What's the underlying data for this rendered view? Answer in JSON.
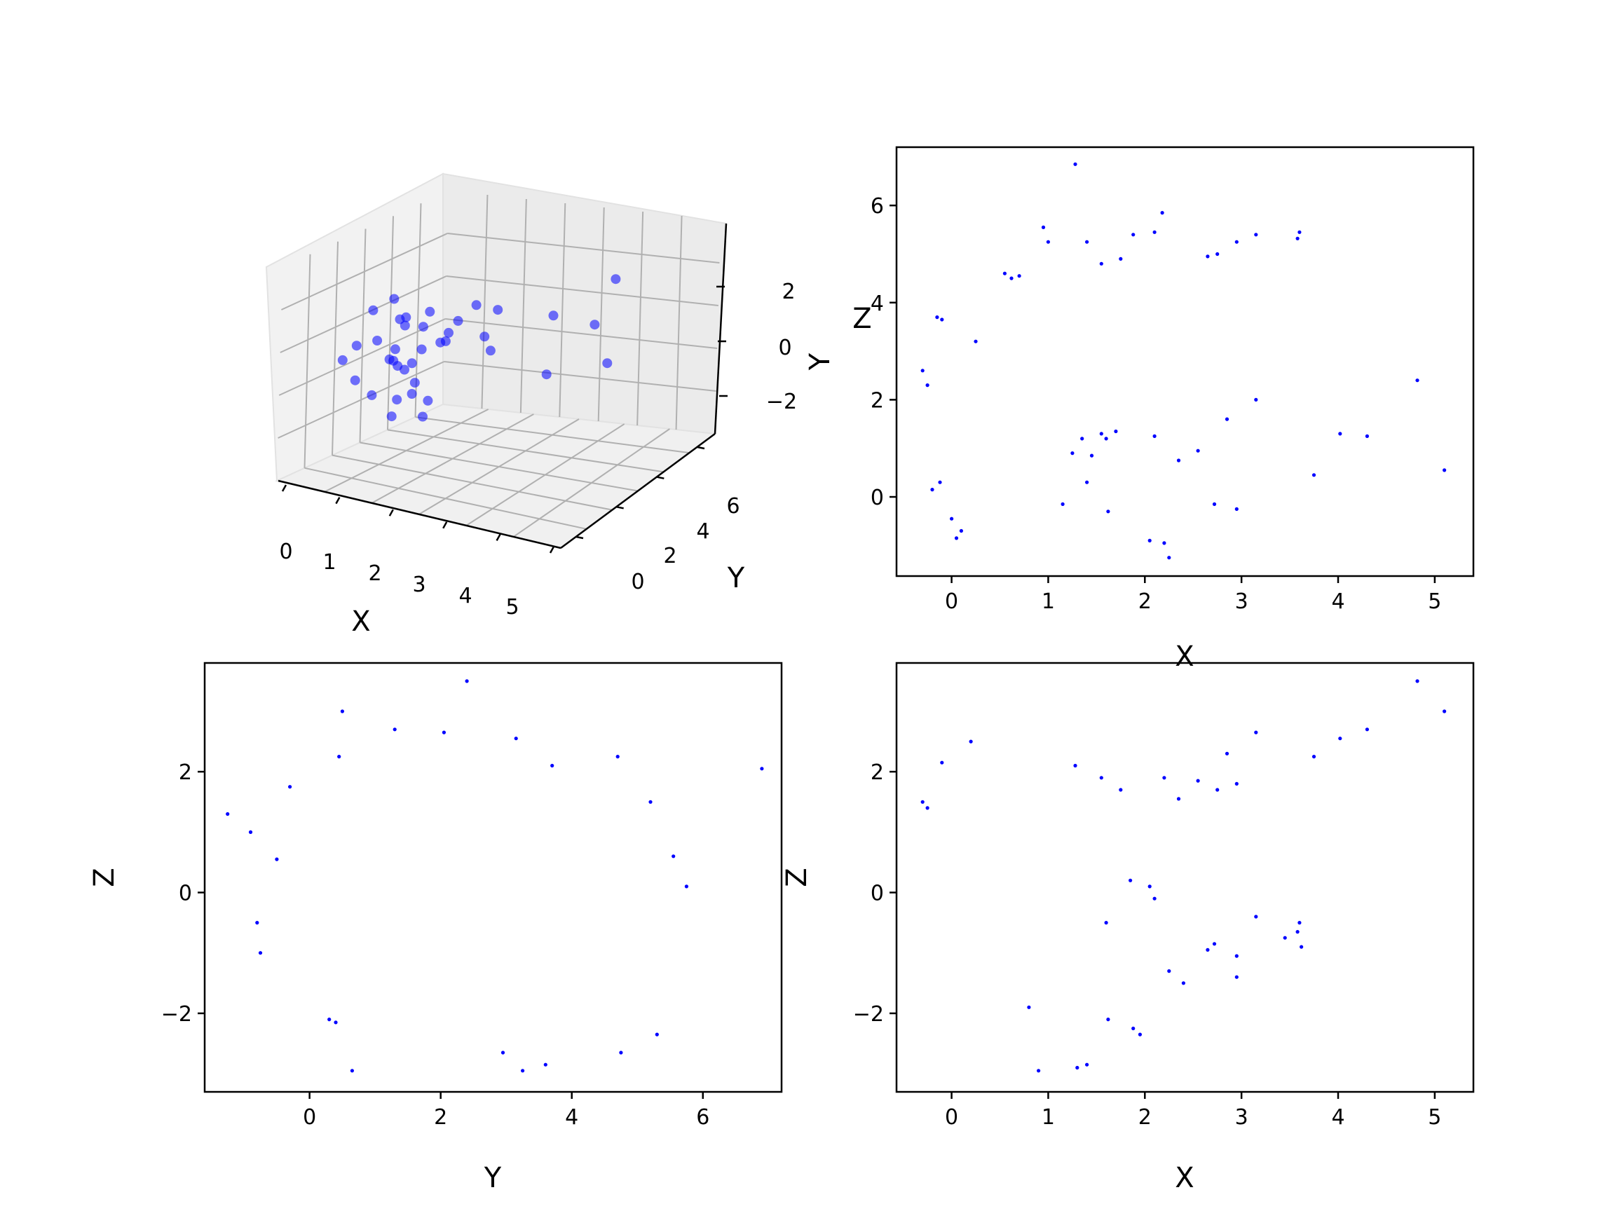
{
  "chart_data": [
    {
      "type": "scatter",
      "subtype": "3d",
      "xlabel": "X",
      "ylabel": "Y",
      "zlabel": "Z",
      "xticks": [
        "0",
        "1",
        "2",
        "3",
        "4",
        "5"
      ],
      "yticks": [
        "0",
        "2",
        "4",
        "6"
      ],
      "zticks": [
        "−2",
        "0",
        "2"
      ],
      "xlim": [
        -0.3,
        5.2
      ],
      "ylim": [
        -1.3,
        6.9
      ],
      "zlim": [
        -3.0,
        3.5
      ],
      "color": "#0000ff",
      "grid": true,
      "points": [
        [
          0.62,
          2.1,
          0.3
        ],
        [
          0.48,
          2.6,
          -0.4
        ],
        [
          0.85,
          2.9,
          0.8
        ],
        [
          0.3,
          1.8,
          -1.1
        ],
        [
          1.0,
          3.4,
          0.2
        ],
        [
          0.7,
          2.4,
          1.2
        ],
        [
          0.2,
          1.2,
          -0.5
        ],
        [
          0.9,
          3.1,
          -1.5
        ],
        [
          0.55,
          2.0,
          0.0
        ],
        [
          1.3,
          3.5,
          0.9
        ],
        [
          0.4,
          1.5,
          1.6
        ],
        [
          0.75,
          2.8,
          -0.9
        ],
        [
          1.1,
          2.2,
          0.4
        ],
        [
          0.35,
          2.7,
          -2.0
        ],
        [
          0.65,
          1.9,
          1.9
        ],
        [
          0.95,
          3.8,
          0.1
        ],
        [
          0.25,
          1.1,
          0.6
        ],
        [
          0.8,
          2.5,
          -0.2
        ],
        [
          1.5,
          3.9,
          1.3
        ],
        [
          0.6,
          2.3,
          -1.3
        ],
        [
          0.45,
          3.0,
          0.7
        ],
        [
          1.2,
          1.5,
          -0.7
        ],
        [
          0.1,
          0.8,
          0.2
        ],
        [
          0.7,
          3.6,
          1.0
        ],
        [
          0.55,
          2.2,
          -0.1
        ],
        [
          1.0,
          2.6,
          -1.8
        ],
        [
          0.3,
          2.0,
          0.5
        ],
        [
          0.85,
          1.7,
          1.4
        ],
        [
          1.6,
          4.1,
          0.3
        ],
        [
          0.5,
          2.9,
          -0.6
        ],
        [
          2.0,
          1.2,
          1.5
        ],
        [
          2.8,
          1.6,
          2.3
        ],
        [
          3.2,
          0.2,
          1.7
        ],
        [
          4.0,
          1.3,
          2.6
        ],
        [
          4.8,
          2.4,
          3.5
        ],
        [
          5.1,
          0.5,
          3.0
        ],
        [
          3.6,
          5.3,
          -0.5
        ],
        [
          2.2,
          5.8,
          -1.3
        ]
      ]
    },
    {
      "type": "scatter",
      "xlabel": "X",
      "ylabel": "Y",
      "xlim": [
        -0.57,
        5.4
      ],
      "ylim": [
        -1.63,
        7.2
      ],
      "xticks": [
        0,
        1,
        2,
        3,
        4,
        5
      ],
      "yticks": [
        0,
        2,
        4,
        6
      ],
      "xticklabels": [
        "0",
        "1",
        "2",
        "3",
        "4",
        "5"
      ],
      "yticklabels": [
        "0",
        "2",
        "4",
        "6"
      ],
      "color": "#0000ff",
      "points": [
        [
          1.28,
          6.85
        ],
        [
          2.18,
          5.85
        ],
        [
          3.58,
          5.32
        ],
        [
          3.6,
          5.45
        ],
        [
          3.15,
          5.4
        ],
        [
          2.95,
          5.25
        ],
        [
          2.1,
          5.45
        ],
        [
          1.88,
          5.4
        ],
        [
          1.4,
          5.25
        ],
        [
          0.95,
          5.55
        ],
        [
          2.65,
          4.95
        ],
        [
          2.75,
          5.0
        ],
        [
          1.75,
          4.9
        ],
        [
          1.55,
          4.8
        ],
        [
          4.82,
          2.4
        ],
        [
          5.1,
          0.55
        ],
        [
          4.3,
          1.25
        ],
        [
          4.02,
          1.3
        ],
        [
          3.75,
          0.45
        ],
        [
          3.15,
          2.0
        ],
        [
          2.85,
          1.6
        ],
        [
          2.55,
          0.95
        ],
        [
          2.35,
          0.75
        ],
        [
          2.2,
          -0.95
        ],
        [
          2.25,
          -1.25
        ],
        [
          2.95,
          -0.25
        ],
        [
          2.72,
          -0.15
        ],
        [
          2.05,
          -0.9
        ],
        [
          1.62,
          -0.3
        ],
        [
          1.4,
          0.3
        ],
        [
          1.15,
          -0.15
        ],
        [
          0.05,
          -0.85
        ],
        [
          0.1,
          -0.7
        ],
        [
          0.0,
          -0.45
        ],
        [
          -0.12,
          0.3
        ],
        [
          -0.2,
          0.15
        ],
        [
          -0.3,
          2.6
        ],
        [
          -0.25,
          2.3
        ],
        [
          -0.1,
          3.65
        ],
        [
          -0.15,
          3.7
        ],
        [
          0.25,
          3.2
        ],
        [
          0.55,
          4.6
        ],
        [
          0.62,
          4.5
        ],
        [
          0.7,
          4.55
        ],
        [
          1.0,
          5.25
        ],
        [
          1.55,
          1.3
        ],
        [
          1.7,
          1.35
        ],
        [
          1.35,
          1.2
        ],
        [
          1.25,
          0.9
        ],
        [
          1.45,
          0.85
        ],
        [
          2.1,
          1.25
        ],
        [
          1.6,
          1.2
        ]
      ]
    },
    {
      "type": "scatter",
      "xlabel": "Y",
      "ylabel": "Z",
      "xlim": [
        -1.6,
        7.2
      ],
      "ylim": [
        -3.3,
        3.8
      ],
      "xticks": [
        0,
        2,
        4,
        6
      ],
      "yticks": [
        -2,
        0,
        2
      ],
      "xticklabels": [
        "0",
        "2",
        "4",
        "6"
      ],
      "yticklabels": [
        "−2",
        "0",
        "2"
      ],
      "color": "#0000ff",
      "points": [
        [
          2.4,
          3.5
        ],
        [
          0.5,
          3.0
        ],
        [
          6.9,
          2.05
        ],
        [
          -1.25,
          1.3
        ],
        [
          -0.9,
          1.0
        ],
        [
          -0.8,
          -0.5
        ],
        [
          -0.75,
          -1.0
        ],
        [
          0.65,
          -2.95
        ],
        [
          3.25,
          -2.95
        ],
        [
          3.6,
          -2.85
        ],
        [
          5.3,
          -2.35
        ],
        [
          5.75,
          0.1
        ],
        [
          5.55,
          0.6
        ],
        [
          1.3,
          2.7
        ],
        [
          2.05,
          2.65
        ],
        [
          3.15,
          2.55
        ],
        [
          4.7,
          2.25
        ],
        [
          0.45,
          2.25
        ],
        [
          3.7,
          2.1
        ],
        [
          -0.3,
          1.75
        ],
        [
          5.2,
          1.5
        ],
        [
          -0.5,
          0.55
        ],
        [
          0.3,
          -2.1
        ],
        [
          0.4,
          -2.15
        ],
        [
          2.95,
          -2.65
        ],
        [
          4.75,
          -2.65
        ]
      ]
    },
    {
      "type": "scatter",
      "xlabel": "X",
      "ylabel": "Z",
      "xlim": [
        -0.57,
        5.4
      ],
      "ylim": [
        -3.3,
        3.8
      ],
      "xticks": [
        0,
        1,
        2,
        3,
        4,
        5
      ],
      "yticks": [
        -2,
        0,
        2
      ],
      "xticklabels": [
        "0",
        "1",
        "2",
        "3",
        "4",
        "5"
      ],
      "yticklabels": [
        "−2",
        "0",
        "2"
      ],
      "color": "#0000ff",
      "points": [
        [
          4.82,
          3.5
        ],
        [
          5.1,
          3.0
        ],
        [
          4.3,
          2.7
        ],
        [
          4.02,
          2.55
        ],
        [
          3.75,
          2.25
        ],
        [
          3.15,
          2.65
        ],
        [
          2.85,
          2.3
        ],
        [
          2.95,
          1.8
        ],
        [
          2.75,
          1.7
        ],
        [
          2.55,
          1.85
        ],
        [
          2.2,
          1.9
        ],
        [
          2.35,
          1.55
        ],
        [
          3.6,
          -0.5
        ],
        [
          3.58,
          -0.65
        ],
        [
          3.62,
          -0.9
        ],
        [
          3.15,
          -0.4
        ],
        [
          2.95,
          -1.05
        ],
        [
          2.95,
          -1.4
        ],
        [
          2.72,
          -0.85
        ],
        [
          2.65,
          -0.95
        ],
        [
          2.4,
          -1.5
        ],
        [
          2.25,
          -1.3
        ],
        [
          1.95,
          -2.35
        ],
        [
          1.88,
          -2.25
        ],
        [
          1.62,
          -2.1
        ],
        [
          1.4,
          -2.85
        ],
        [
          1.3,
          -2.9
        ],
        [
          0.9,
          -2.95
        ],
        [
          0.8,
          -1.9
        ],
        [
          0.2,
          2.5
        ],
        [
          -0.1,
          2.15
        ],
        [
          -0.3,
          1.5
        ],
        [
          -0.25,
          1.4
        ],
        [
          1.28,
          2.1
        ],
        [
          1.55,
          1.9
        ],
        [
          1.75,
          1.7
        ],
        [
          1.6,
          -0.5
        ],
        [
          2.05,
          0.1
        ],
        [
          2.1,
          -0.1
        ],
        [
          1.85,
          0.2
        ],
        [
          3.45,
          -0.75
        ]
      ]
    }
  ]
}
